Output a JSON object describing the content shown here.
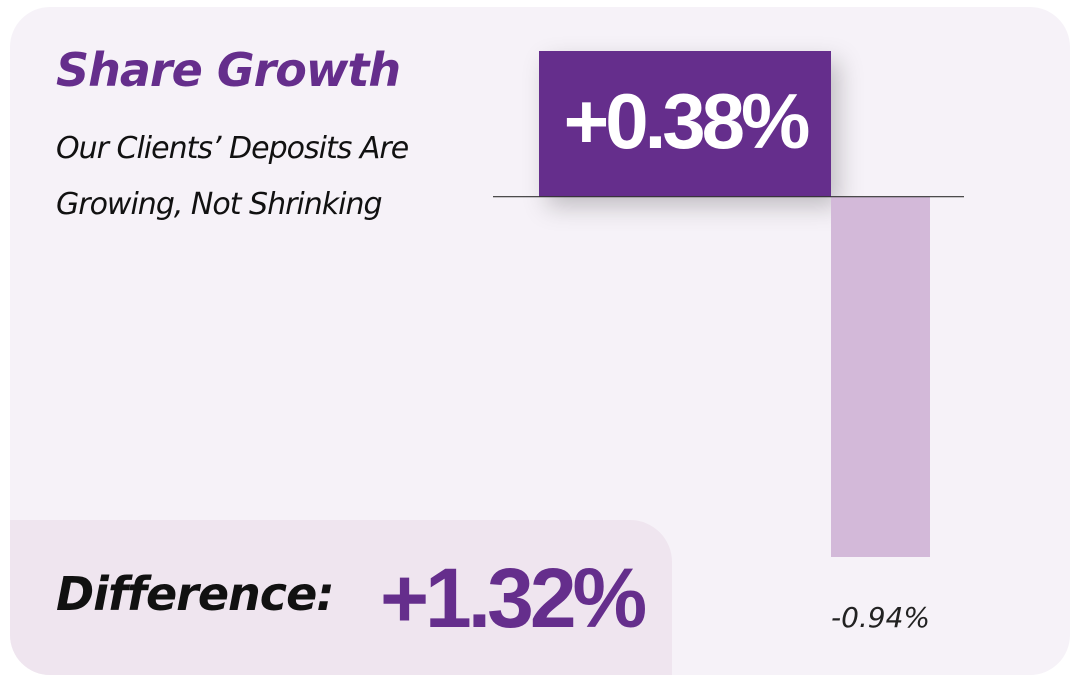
{
  "title": "Share Growth",
  "subtitle": "Our Clients’ Deposits Are Growing, Not Shrinking",
  "difference": {
    "label": "Difference:",
    "value": "+1.32%"
  },
  "colors": {
    "background": "#f6f2f8",
    "accent": "#652e8c",
    "negative_bar": "#d3b9d9",
    "difference_panel": "#efe5ef"
  },
  "chart_data": {
    "type": "bar",
    "categories": [
      "",
      ""
    ],
    "values": [
      0.38,
      -0.94
    ],
    "data_labels": [
      "+0.38%",
      "-0.94%"
    ],
    "title": "",
    "xlabel": "",
    "ylabel": "",
    "ylim": [
      -0.94,
      0.38
    ],
    "grid": false,
    "baseline": 0
  }
}
